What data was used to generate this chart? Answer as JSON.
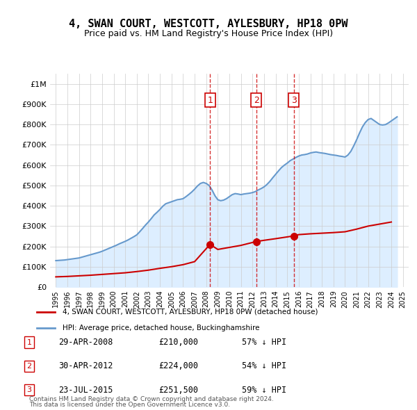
{
  "title": "4, SWAN COURT, WESTCOTT, AYLESBURY, HP18 0PW",
  "subtitle": "Price paid vs. HM Land Registry's House Price Index (HPI)",
  "legend_property": "4, SWAN COURT, WESTCOTT, AYLESBURY, HP18 0PW (detached house)",
  "legend_hpi": "HPI: Average price, detached house, Buckinghamshire",
  "footer1": "Contains HM Land Registry data © Crown copyright and database right 2024.",
  "footer2": "This data is licensed under the Open Government Licence v3.0.",
  "transactions": [
    {
      "num": 1,
      "date": "29-APR-2008",
      "price": 210000,
      "pct": "57% ↓ HPI",
      "date_x": 2008.33
    },
    {
      "num": 2,
      "date": "30-APR-2012",
      "price": 224000,
      "pct": "54% ↓ HPI",
      "date_x": 2012.33
    },
    {
      "num": 3,
      "date": "23-JUL-2015",
      "price": 251500,
      "pct": "59% ↓ HPI",
      "date_x": 2015.56
    }
  ],
  "property_color": "#cc0000",
  "hpi_color": "#6699cc",
  "hpi_fill_color": "#ddeeff",
  "vline_color": "#cc0000",
  "background_color": "#ffffff",
  "ylim": [
    0,
    1050000
  ],
  "yticks": [
    0,
    100000,
    200000,
    300000,
    400000,
    500000,
    600000,
    700000,
    800000,
    900000,
    1000000
  ],
  "ytick_labels": [
    "£0",
    "£100K",
    "£200K",
    "£300K",
    "£400K",
    "£500K",
    "£600K",
    "£700K",
    "£800K",
    "£900K",
    "£1M"
  ],
  "xlim_start": 1994.5,
  "xlim_end": 2025.5,
  "xticks": [
    1995,
    1996,
    1997,
    1998,
    1999,
    2000,
    2001,
    2002,
    2003,
    2004,
    2005,
    2006,
    2007,
    2008,
    2009,
    2010,
    2011,
    2012,
    2013,
    2014,
    2015,
    2016,
    2017,
    2018,
    2019,
    2020,
    2021,
    2022,
    2023,
    2024,
    2025
  ],
  "hpi_data": {
    "x": [
      1995,
      1995.25,
      1995.5,
      1995.75,
      1996,
      1996.25,
      1996.5,
      1996.75,
      1997,
      1997.25,
      1997.5,
      1997.75,
      1998,
      1998.25,
      1998.5,
      1998.75,
      1999,
      1999.25,
      1999.5,
      1999.75,
      2000,
      2000.25,
      2000.5,
      2000.75,
      2001,
      2001.25,
      2001.5,
      2001.75,
      2002,
      2002.25,
      2002.5,
      2002.75,
      2003,
      2003.25,
      2003.5,
      2003.75,
      2004,
      2004.25,
      2004.5,
      2004.75,
      2005,
      2005.25,
      2005.5,
      2005.75,
      2006,
      2006.25,
      2006.5,
      2006.75,
      2007,
      2007.25,
      2007.5,
      2007.75,
      2008,
      2008.25,
      2008.5,
      2008.75,
      2009,
      2009.25,
      2009.5,
      2009.75,
      2010,
      2010.25,
      2010.5,
      2010.75,
      2011,
      2011.25,
      2011.5,
      2011.75,
      2012,
      2012.25,
      2012.5,
      2012.75,
      2013,
      2013.25,
      2013.5,
      2013.75,
      2014,
      2014.25,
      2014.5,
      2014.75,
      2015,
      2015.25,
      2015.5,
      2015.75,
      2016,
      2016.25,
      2016.5,
      2016.75,
      2017,
      2017.25,
      2017.5,
      2017.75,
      2018,
      2018.25,
      2018.5,
      2018.75,
      2019,
      2019.25,
      2019.5,
      2019.75,
      2020,
      2020.25,
      2020.5,
      2020.75,
      2021,
      2021.25,
      2021.5,
      2021.75,
      2022,
      2022.25,
      2022.5,
      2022.75,
      2023,
      2023.25,
      2023.5,
      2023.75,
      2024,
      2024.25,
      2024.5
    ],
    "y": [
      130000,
      131000,
      132000,
      133000,
      135000,
      137000,
      139000,
      141000,
      143000,
      147000,
      151000,
      155000,
      159000,
      163000,
      167000,
      171000,
      176000,
      182000,
      188000,
      194000,
      200000,
      206000,
      213000,
      219000,
      225000,
      232000,
      240000,
      248000,
      257000,
      272000,
      288000,
      305000,
      320000,
      337000,
      355000,
      368000,
      382000,
      398000,
      410000,
      415000,
      420000,
      425000,
      430000,
      432000,
      435000,
      445000,
      456000,
      468000,
      482000,
      498000,
      510000,
      515000,
      510000,
      500000,
      478000,
      450000,
      430000,
      425000,
      428000,
      435000,
      445000,
      455000,
      460000,
      458000,
      455000,
      458000,
      460000,
      462000,
      465000,
      470000,
      478000,
      485000,
      493000,
      505000,
      520000,
      538000,
      555000,
      572000,
      588000,
      600000,
      610000,
      622000,
      630000,
      638000,
      645000,
      650000,
      652000,
      655000,
      660000,
      663000,
      665000,
      662000,
      660000,
      658000,
      655000,
      652000,
      650000,
      648000,
      645000,
      643000,
      640000,
      650000,
      668000,
      695000,
      725000,
      758000,
      788000,
      810000,
      825000,
      830000,
      820000,
      810000,
      800000,
      798000,
      800000,
      808000,
      818000,
      828000,
      838000
    ]
  },
  "property_data": {
    "x": [
      1995,
      1996,
      1997,
      1998,
      1999,
      2000,
      2001,
      2002,
      2003,
      2004,
      2005,
      2006,
      2007,
      2008.33,
      2009,
      2010,
      2011,
      2012.33,
      2013,
      2014,
      2015.56,
      2016,
      2017,
      2018,
      2019,
      2020,
      2021,
      2022,
      2023,
      2024
    ],
    "y": [
      50000,
      52000,
      55000,
      58000,
      62000,
      66000,
      70000,
      76000,
      83000,
      92000,
      100000,
      110000,
      125000,
      210000,
      185000,
      195000,
      205000,
      224000,
      230000,
      238000,
      251500,
      258000,
      262000,
      265000,
      268000,
      272000,
      285000,
      300000,
      310000,
      320000
    ]
  }
}
